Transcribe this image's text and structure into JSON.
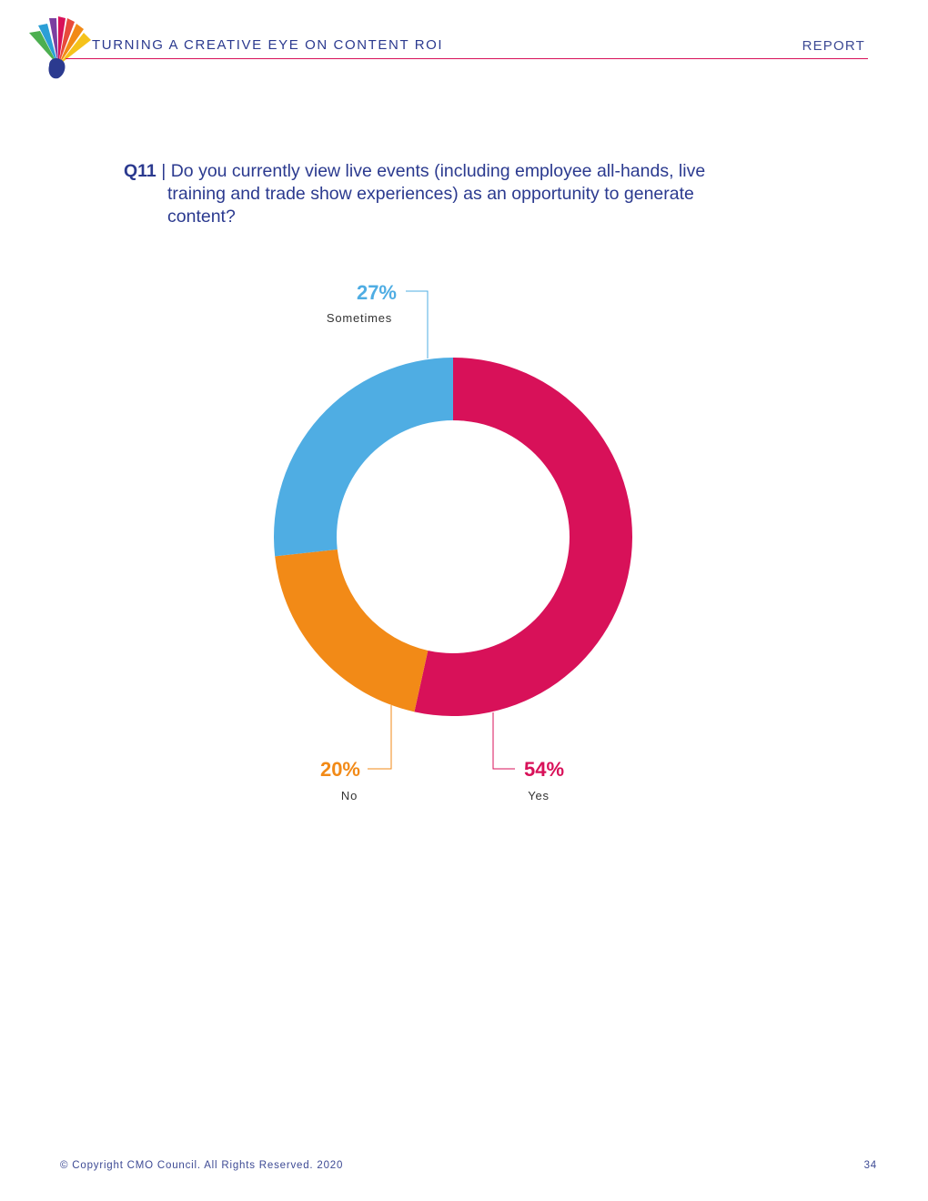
{
  "header": {
    "title": "TURNING A CREATIVE EYE ON CONTENT ROI",
    "section": "REPORT"
  },
  "question": {
    "number": "Q11",
    "separator": "|",
    "text_line1": "Do you currently view live events (including employee all-hands, live",
    "text_line2": "training and trade show experiences) as an opportunity to generate",
    "text_line3": "content?"
  },
  "chart_data": {
    "type": "pie",
    "donut": true,
    "categories": [
      "Yes",
      "No",
      "Sometimes"
    ],
    "values": [
      54,
      20,
      27
    ],
    "value_labels": [
      "54%",
      "20%",
      "27%"
    ],
    "colors": [
      "#d81159",
      "#f28a17",
      "#4fade3"
    ],
    "title": "",
    "legend": "none"
  },
  "footer": {
    "copyright": "© Copyright CMO Council. All Rights Reserved. 2020",
    "page_number": "34"
  },
  "colors": {
    "brand_navy": "#2b3a8f",
    "rule": "#d81159"
  }
}
